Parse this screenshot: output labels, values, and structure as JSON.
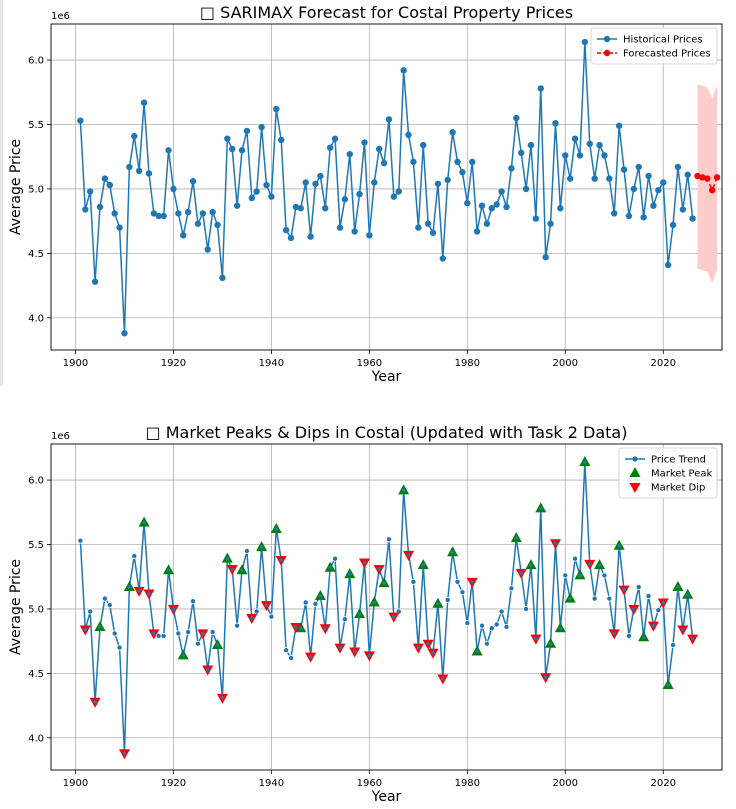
{
  "charts": [
    {
      "title": "□ SARIMAX Forecast for Costal Property Prices",
      "xlabel": "Year",
      "ylabel": "Average Price",
      "offset_label": "1e6",
      "legend": [
        "Historical Prices",
        "Forecasted Prices"
      ]
    },
    {
      "title": "□ Market Peaks & Dips in Costal (Updated with Task 2 Data)",
      "xlabel": "Year",
      "ylabel": "Average Price",
      "offset_label": "1e6",
      "legend": [
        "Price Trend",
        "Market Peak",
        "Market Dip"
      ]
    }
  ],
  "colors": {
    "historical": "#1f77b4",
    "forecast": "#ff0000",
    "confidence": "#ffcccc",
    "peak": "#008000",
    "dip": "#ff0000",
    "grid": "#b0b0b0"
  },
  "chart_data": [
    {
      "type": "line",
      "title": "□ SARIMAX Forecast for Costal Property Prices",
      "xlabel": "Year",
      "ylabel": "Average Price",
      "y_scale_label": "1e6",
      "xlim": [
        1895,
        2032
      ],
      "ylim": [
        3.75,
        6.28
      ],
      "xticks": [
        1900,
        1920,
        1940,
        1960,
        1980,
        2000,
        2020
      ],
      "yticks": [
        4.0,
        4.5,
        5.0,
        5.5,
        6.0
      ],
      "grid": true,
      "legend_position": "top-right",
      "series": [
        {
          "name": "Historical Prices",
          "x": [
            1901,
            1902,
            1903,
            1904,
            1905,
            1906,
            1907,
            1908,
            1909,
            1910,
            1911,
            1912,
            1913,
            1914,
            1915,
            1916,
            1917,
            1918,
            1919,
            1920,
            1921,
            1922,
            1923,
            1924,
            1925,
            1926,
            1927,
            1928,
            1929,
            1930,
            1931,
            1932,
            1933,
            1934,
            1935,
            1936,
            1937,
            1938,
            1939,
            1940,
            1941,
            1942,
            1943,
            1944,
            1945,
            1946,
            1947,
            1948,
            1949,
            1950,
            1951,
            1952,
            1953,
            1954,
            1955,
            1956,
            1957,
            1958,
            1959,
            1960,
            1961,
            1962,
            1963,
            1964,
            1965,
            1966,
            1967,
            1968,
            1969,
            1970,
            1971,
            1972,
            1973,
            1974,
            1975,
            1976,
            1977,
            1978,
            1979,
            1980,
            1981,
            1982,
            1983,
            1984,
            1985,
            1986,
            1987,
            1988,
            1989,
            1990,
            1991,
            1992,
            1993,
            1994,
            1995,
            1996,
            1997,
            1998,
            1999,
            2000,
            2001,
            2002,
            2003,
            2004,
            2005,
            2006,
            2007,
            2008,
            2009,
            2010,
            2011,
            2012,
            2013,
            2014,
            2015,
            2016,
            2017,
            2018,
            2019,
            2020,
            2021,
            2022,
            2023,
            2024,
            2025,
            2026
          ],
          "y": [
            5.53,
            4.84,
            4.98,
            4.28,
            4.86,
            5.08,
            5.03,
            4.81,
            4.7,
            3.88,
            5.17,
            5.41,
            5.14,
            5.67,
            5.12,
            4.81,
            4.79,
            4.79,
            5.3,
            5.0,
            4.81,
            4.64,
            4.82,
            5.06,
            4.73,
            4.81,
            4.53,
            4.82,
            4.72,
            4.31,
            5.39,
            5.31,
            4.87,
            5.3,
            5.45,
            4.93,
            4.98,
            5.48,
            5.03,
            4.94,
            5.62,
            5.38,
            4.68,
            4.62,
            4.86,
            4.85,
            5.05,
            4.63,
            5.04,
            5.1,
            4.85,
            5.32,
            5.39,
            4.7,
            4.92,
            5.27,
            4.67,
            4.96,
            5.36,
            4.64,
            5.05,
            5.31,
            5.2,
            5.54,
            4.94,
            4.98,
            5.92,
            5.42,
            5.21,
            4.7,
            5.34,
            4.73,
            4.66,
            5.04,
            4.46,
            5.07,
            5.44,
            5.21,
            5.13,
            4.89,
            5.21,
            4.67,
            4.87,
            4.73,
            4.85,
            4.88,
            4.98,
            4.86,
            5.16,
            5.55,
            5.28,
            5.0,
            5.34,
            4.77,
            5.78,
            4.47,
            4.73,
            5.51,
            4.85,
            5.26,
            5.08,
            5.39,
            5.26,
            6.14,
            5.35,
            5.08,
            5.34,
            5.26,
            5.08,
            4.81,
            5.49,
            5.15,
            4.79,
            5.0,
            5.17,
            4.78,
            5.1,
            4.87,
            4.99,
            5.05,
            4.41,
            4.72,
            5.17,
            4.84,
            5.11,
            4.77
          ]
        },
        {
          "name": "Forecasted Prices",
          "x": [
            2027,
            2028,
            2029,
            2030,
            2031
          ],
          "y": [
            5.1,
            5.09,
            5.08,
            4.99,
            5.09
          ],
          "lower": [
            4.38,
            4.37,
            4.36,
            4.27,
            4.37
          ],
          "upper": [
            5.81,
            5.8,
            5.79,
            5.7,
            5.81
          ]
        }
      ]
    },
    {
      "type": "line",
      "title": "□ Market Peaks & Dips in Costal (Updated with Task 2 Data)",
      "xlabel": "Year",
      "ylabel": "Average Price",
      "y_scale_label": "1e6",
      "xlim": [
        1895,
        2032
      ],
      "ylim": [
        3.75,
        6.28
      ],
      "xticks": [
        1900,
        1920,
        1940,
        1960,
        1980,
        2000,
        2020
      ],
      "yticks": [
        4.0,
        4.5,
        5.0,
        5.5,
        6.0
      ],
      "grid": true,
      "legend_position": "top-right",
      "series": [
        {
          "name": "Price Trend",
          "source": "historical"
        },
        {
          "name": "Market Peak",
          "x": [
            1905,
            1911,
            1914,
            1919,
            1922,
            1929,
            1931,
            1934,
            1938,
            1941,
            1946,
            1950,
            1952,
            1956,
            1958,
            1961,
            1963,
            1967,
            1971,
            1974,
            1977,
            1982,
            1990,
            1993,
            1995,
            1997,
            1999,
            2001,
            2003,
            2004,
            2007,
            2011,
            2016,
            2021,
            2023,
            2025
          ]
        },
        {
          "name": "Market Dip",
          "x": [
            1902,
            1904,
            1910,
            1913,
            1915,
            1916,
            1920,
            1926,
            1927,
            1930,
            1932,
            1936,
            1939,
            1942,
            1945,
            1948,
            1951,
            1954,
            1957,
            1959,
            1960,
            1962,
            1965,
            1968,
            1970,
            1972,
            1973,
            1975,
            1981,
            1991,
            1994,
            1996,
            1998,
            2005,
            2010,
            2012,
            2014,
            2018,
            2020,
            2024,
            2026
          ]
        }
      ]
    }
  ]
}
